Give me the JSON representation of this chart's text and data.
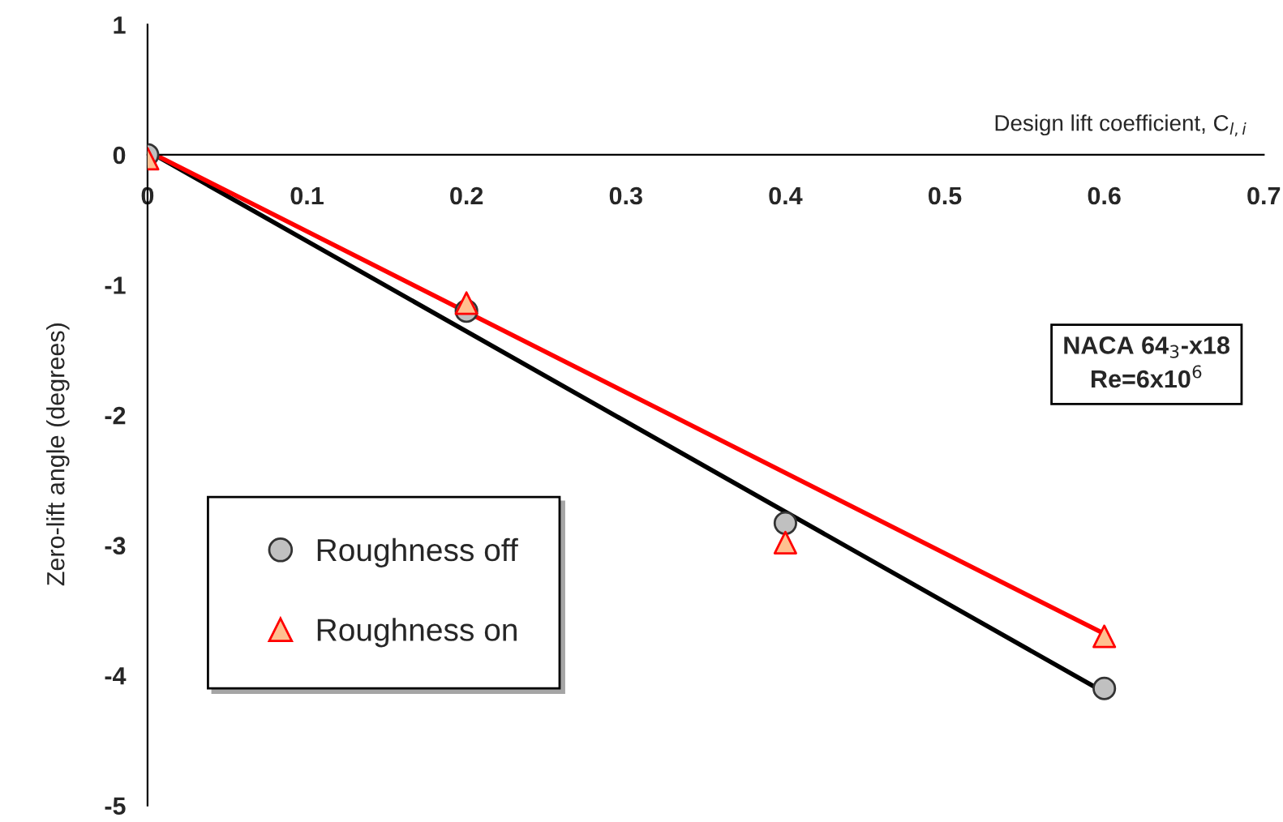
{
  "chart_data": {
    "type": "scatter",
    "xlabel": "Design lift coefficient, C$_{l,i}$",
    "ylabel": "Zero-lift angle (degrees)",
    "xlim": [
      0,
      0.7
    ],
    "xticks": [
      0,
      0.1,
      0.2,
      0.3,
      0.4,
      0.5,
      0.6,
      0.7
    ],
    "ylim": [
      -5,
      1
    ],
    "yticks": [
      -5,
      -4,
      -3,
      -2,
      -1,
      0,
      1
    ],
    "grid": false,
    "legend": "left",
    "annotations": [
      "NACA 64$_{3}$-x18\nRe=6x10$^{6}$"
    ],
    "series": [
      {
        "type": "line",
        "color": "#000000",
        "x": [
          0,
          0.6
        ],
        "values": [
          0.03,
          -4.13
        ],
        "marker": "none",
        "line_style": "solid"
      },
      {
        "type": "line",
        "color": "#ff0000",
        "x": [
          0,
          0.6
        ],
        "values": [
          0.03,
          -3.68
        ],
        "marker": "none",
        "line_style": "solid"
      },
      {
        "name": "Roughness off",
        "color": "#c0c0c0",
        "x": [
          0,
          0.2,
          0.4,
          0.6
        ],
        "values": [
          0,
          -1.2,
          -2.83,
          -4.1
        ],
        "marker": "circle"
      },
      {
        "name": "Roughness on",
        "color": "#ffc090",
        "x": [
          0,
          0.2,
          0.4,
          0.6
        ],
        "values": [
          -0.03,
          -1.14,
          -2.98,
          -3.7
        ],
        "marker": "triangle"
      }
    ]
  }
}
